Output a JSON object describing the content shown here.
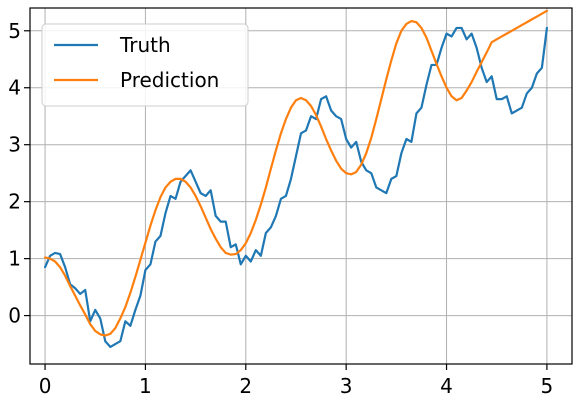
{
  "chart_data": {
    "type": "line",
    "title": "",
    "xlabel": "",
    "ylabel": "",
    "xlim": [
      -0.15,
      5.25
    ],
    "ylim": [
      -0.85,
      5.4
    ],
    "grid": true,
    "legend_position": "top-left",
    "x_ticks": [
      {
        "value": 0,
        "label": "0"
      },
      {
        "value": 1,
        "label": "1"
      },
      {
        "value": 2,
        "label": "2"
      },
      {
        "value": 3,
        "label": "3"
      },
      {
        "value": 4,
        "label": "4"
      },
      {
        "value": 5,
        "label": "5"
      }
    ],
    "y_ticks": [
      {
        "value": 0,
        "label": "0"
      },
      {
        "value": 1,
        "label": "1"
      },
      {
        "value": 2,
        "label": "2"
      },
      {
        "value": 3,
        "label": "3"
      },
      {
        "value": 4,
        "label": "4"
      },
      {
        "value": 5,
        "label": "5"
      }
    ],
    "series": [
      {
        "name": "Truth",
        "color": "#1f77b4",
        "x": [
          0.0,
          0.05,
          0.1,
          0.15,
          0.2,
          0.25,
          0.3,
          0.35,
          0.4,
          0.45,
          0.5,
          0.55,
          0.6,
          0.65,
          0.7,
          0.75,
          0.8,
          0.85,
          0.9,
          0.95,
          1.0,
          1.05,
          1.1,
          1.15,
          1.2,
          1.25,
          1.3,
          1.35,
          1.4,
          1.45,
          1.5,
          1.55,
          1.6,
          1.65,
          1.7,
          1.75,
          1.8,
          1.85,
          1.9,
          1.95,
          2.0,
          2.05,
          2.1,
          2.15,
          2.2,
          2.25,
          2.3,
          2.35,
          2.4,
          2.45,
          2.5,
          2.55,
          2.6,
          2.65,
          2.7,
          2.75,
          2.8,
          2.85,
          2.9,
          2.95,
          3.0,
          3.05,
          3.1,
          3.15,
          3.2,
          3.25,
          3.3,
          3.35,
          3.4,
          3.45,
          3.5,
          3.55,
          3.6,
          3.65,
          3.7,
          3.75,
          3.8,
          3.85,
          3.9,
          3.95,
          4.0,
          4.05,
          4.1,
          4.15,
          4.2,
          4.25,
          4.3,
          4.35,
          4.4,
          4.45,
          4.5,
          4.55,
          4.6,
          4.65,
          4.7,
          4.75,
          4.8,
          4.85,
          4.9,
          4.95,
          5.0
        ],
        "values": [
          0.85,
          1.05,
          1.1,
          1.08,
          0.85,
          0.55,
          0.48,
          0.38,
          0.45,
          -0.1,
          0.1,
          -0.05,
          -0.45,
          -0.55,
          -0.5,
          -0.45,
          -0.1,
          -0.18,
          0.1,
          0.35,
          0.8,
          0.9,
          1.3,
          1.4,
          1.8,
          2.1,
          2.05,
          2.35,
          2.45,
          2.55,
          2.35,
          2.15,
          2.1,
          2.2,
          1.75,
          1.65,
          1.65,
          1.2,
          1.25,
          0.9,
          1.05,
          0.95,
          1.15,
          1.05,
          1.45,
          1.55,
          1.75,
          2.05,
          2.1,
          2.4,
          2.8,
          3.2,
          3.25,
          3.5,
          3.45,
          3.8,
          3.85,
          3.6,
          3.5,
          3.45,
          3.1,
          2.95,
          3.05,
          2.7,
          2.55,
          2.5,
          2.25,
          2.2,
          2.15,
          2.4,
          2.45,
          2.85,
          3.1,
          3.05,
          3.55,
          3.65,
          4.05,
          4.4,
          4.4,
          4.7,
          4.95,
          4.9,
          5.05,
          5.05,
          4.85,
          4.95,
          4.7,
          4.35,
          4.1,
          4.2,
          3.8,
          3.8,
          3.85,
          3.55,
          3.6,
          3.65,
          3.9,
          4.0,
          4.25,
          4.35,
          5.05
        ]
      },
      {
        "name": "Prediction",
        "color": "#ff7f0e",
        "x": [
          0.0,
          0.05,
          0.1,
          0.15,
          0.2,
          0.25,
          0.3,
          0.35,
          0.4,
          0.45,
          0.5,
          0.55,
          0.6,
          0.65,
          0.7,
          0.75,
          0.8,
          0.85,
          0.9,
          0.95,
          1.0,
          1.05,
          1.1,
          1.15,
          1.2,
          1.25,
          1.3,
          1.35,
          1.4,
          1.45,
          1.5,
          1.55,
          1.6,
          1.65,
          1.7,
          1.75,
          1.8,
          1.85,
          1.9,
          1.95,
          2.0,
          2.05,
          2.1,
          2.15,
          2.2,
          2.25,
          2.3,
          2.35,
          2.4,
          2.45,
          2.5,
          2.55,
          2.6,
          2.65,
          2.7,
          2.75,
          2.8,
          2.85,
          2.9,
          2.95,
          3.0,
          3.05,
          3.1,
          3.15,
          3.2,
          3.25,
          3.3,
          3.35,
          3.4,
          3.45,
          3.5,
          3.55,
          3.6,
          3.65,
          3.7,
          3.75,
          3.8,
          3.85,
          3.9,
          3.95,
          4.0,
          4.05,
          4.1,
          4.15,
          4.2,
          4.25,
          4.3,
          4.35,
          4.4,
          4.45,
          4.5,
          4.55,
          4.6,
          4.65,
          4.7,
          4.75,
          4.8,
          4.85,
          4.9,
          4.95,
          5.0
        ],
        "values": [
          1.02,
          1.0,
          0.95,
          0.85,
          0.7,
          0.52,
          0.35,
          0.18,
          0.02,
          -0.15,
          -0.27,
          -0.33,
          -0.35,
          -0.32,
          -0.22,
          -0.05,
          0.15,
          0.4,
          0.68,
          0.98,
          1.28,
          1.58,
          1.85,
          2.08,
          2.25,
          2.35,
          2.4,
          2.4,
          2.35,
          2.25,
          2.1,
          1.92,
          1.72,
          1.52,
          1.35,
          1.2,
          1.1,
          1.07,
          1.08,
          1.15,
          1.27,
          1.45,
          1.68,
          1.95,
          2.25,
          2.58,
          2.9,
          3.2,
          3.45,
          3.65,
          3.78,
          3.82,
          3.78,
          3.68,
          3.52,
          3.32,
          3.1,
          2.9,
          2.72,
          2.58,
          2.5,
          2.48,
          2.52,
          2.65,
          2.85,
          3.12,
          3.45,
          3.8,
          4.15,
          4.48,
          4.78,
          5.0,
          5.12,
          5.17,
          5.15,
          5.05,
          4.88,
          4.65,
          4.42,
          4.2,
          4.0,
          3.85,
          3.78,
          3.82,
          3.95,
          4.1,
          4.28,
          4.45,
          4.62,
          4.8,
          4.85,
          4.9,
          4.95,
          5.0,
          5.05,
          5.1,
          5.15,
          5.2,
          5.25,
          5.3,
          5.35
        ]
      }
    ]
  }
}
